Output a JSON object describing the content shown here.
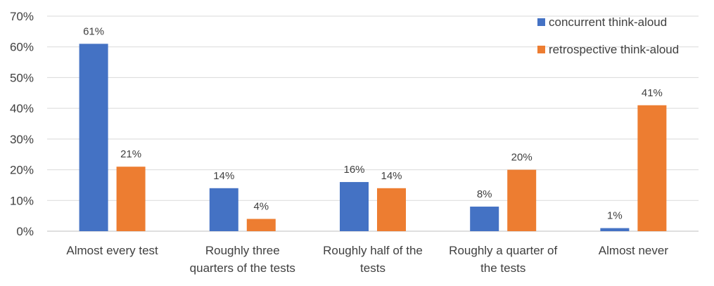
{
  "chart_data": {
    "type": "bar",
    "categories": [
      [
        "Almost every test"
      ],
      [
        "Roughly three",
        "quarters of the tests"
      ],
      [
        "Roughly half of the",
        "tests"
      ],
      [
        "Roughly a quarter of",
        "the tests"
      ],
      [
        "Almost never"
      ]
    ],
    "series": [
      {
        "name": "concurrent think-aloud",
        "color": "#4472C4",
        "values": [
          61,
          14,
          16,
          8,
          1
        ],
        "labels": [
          "61%",
          "14%",
          "16%",
          "8%",
          "1%"
        ]
      },
      {
        "name": "retrospective think-aloud",
        "color": "#ED7D31",
        "values": [
          21,
          4,
          14,
          20,
          41
        ],
        "labels": [
          "21%",
          "4%",
          "14%",
          "20%",
          "41%"
        ]
      }
    ],
    "yticks": [
      "0%",
      "10%",
      "20%",
      "30%",
      "40%",
      "50%",
      "60%",
      "70%"
    ],
    "ylim": [
      0,
      70
    ],
    "grid": true,
    "legend_position": "top-right"
  }
}
